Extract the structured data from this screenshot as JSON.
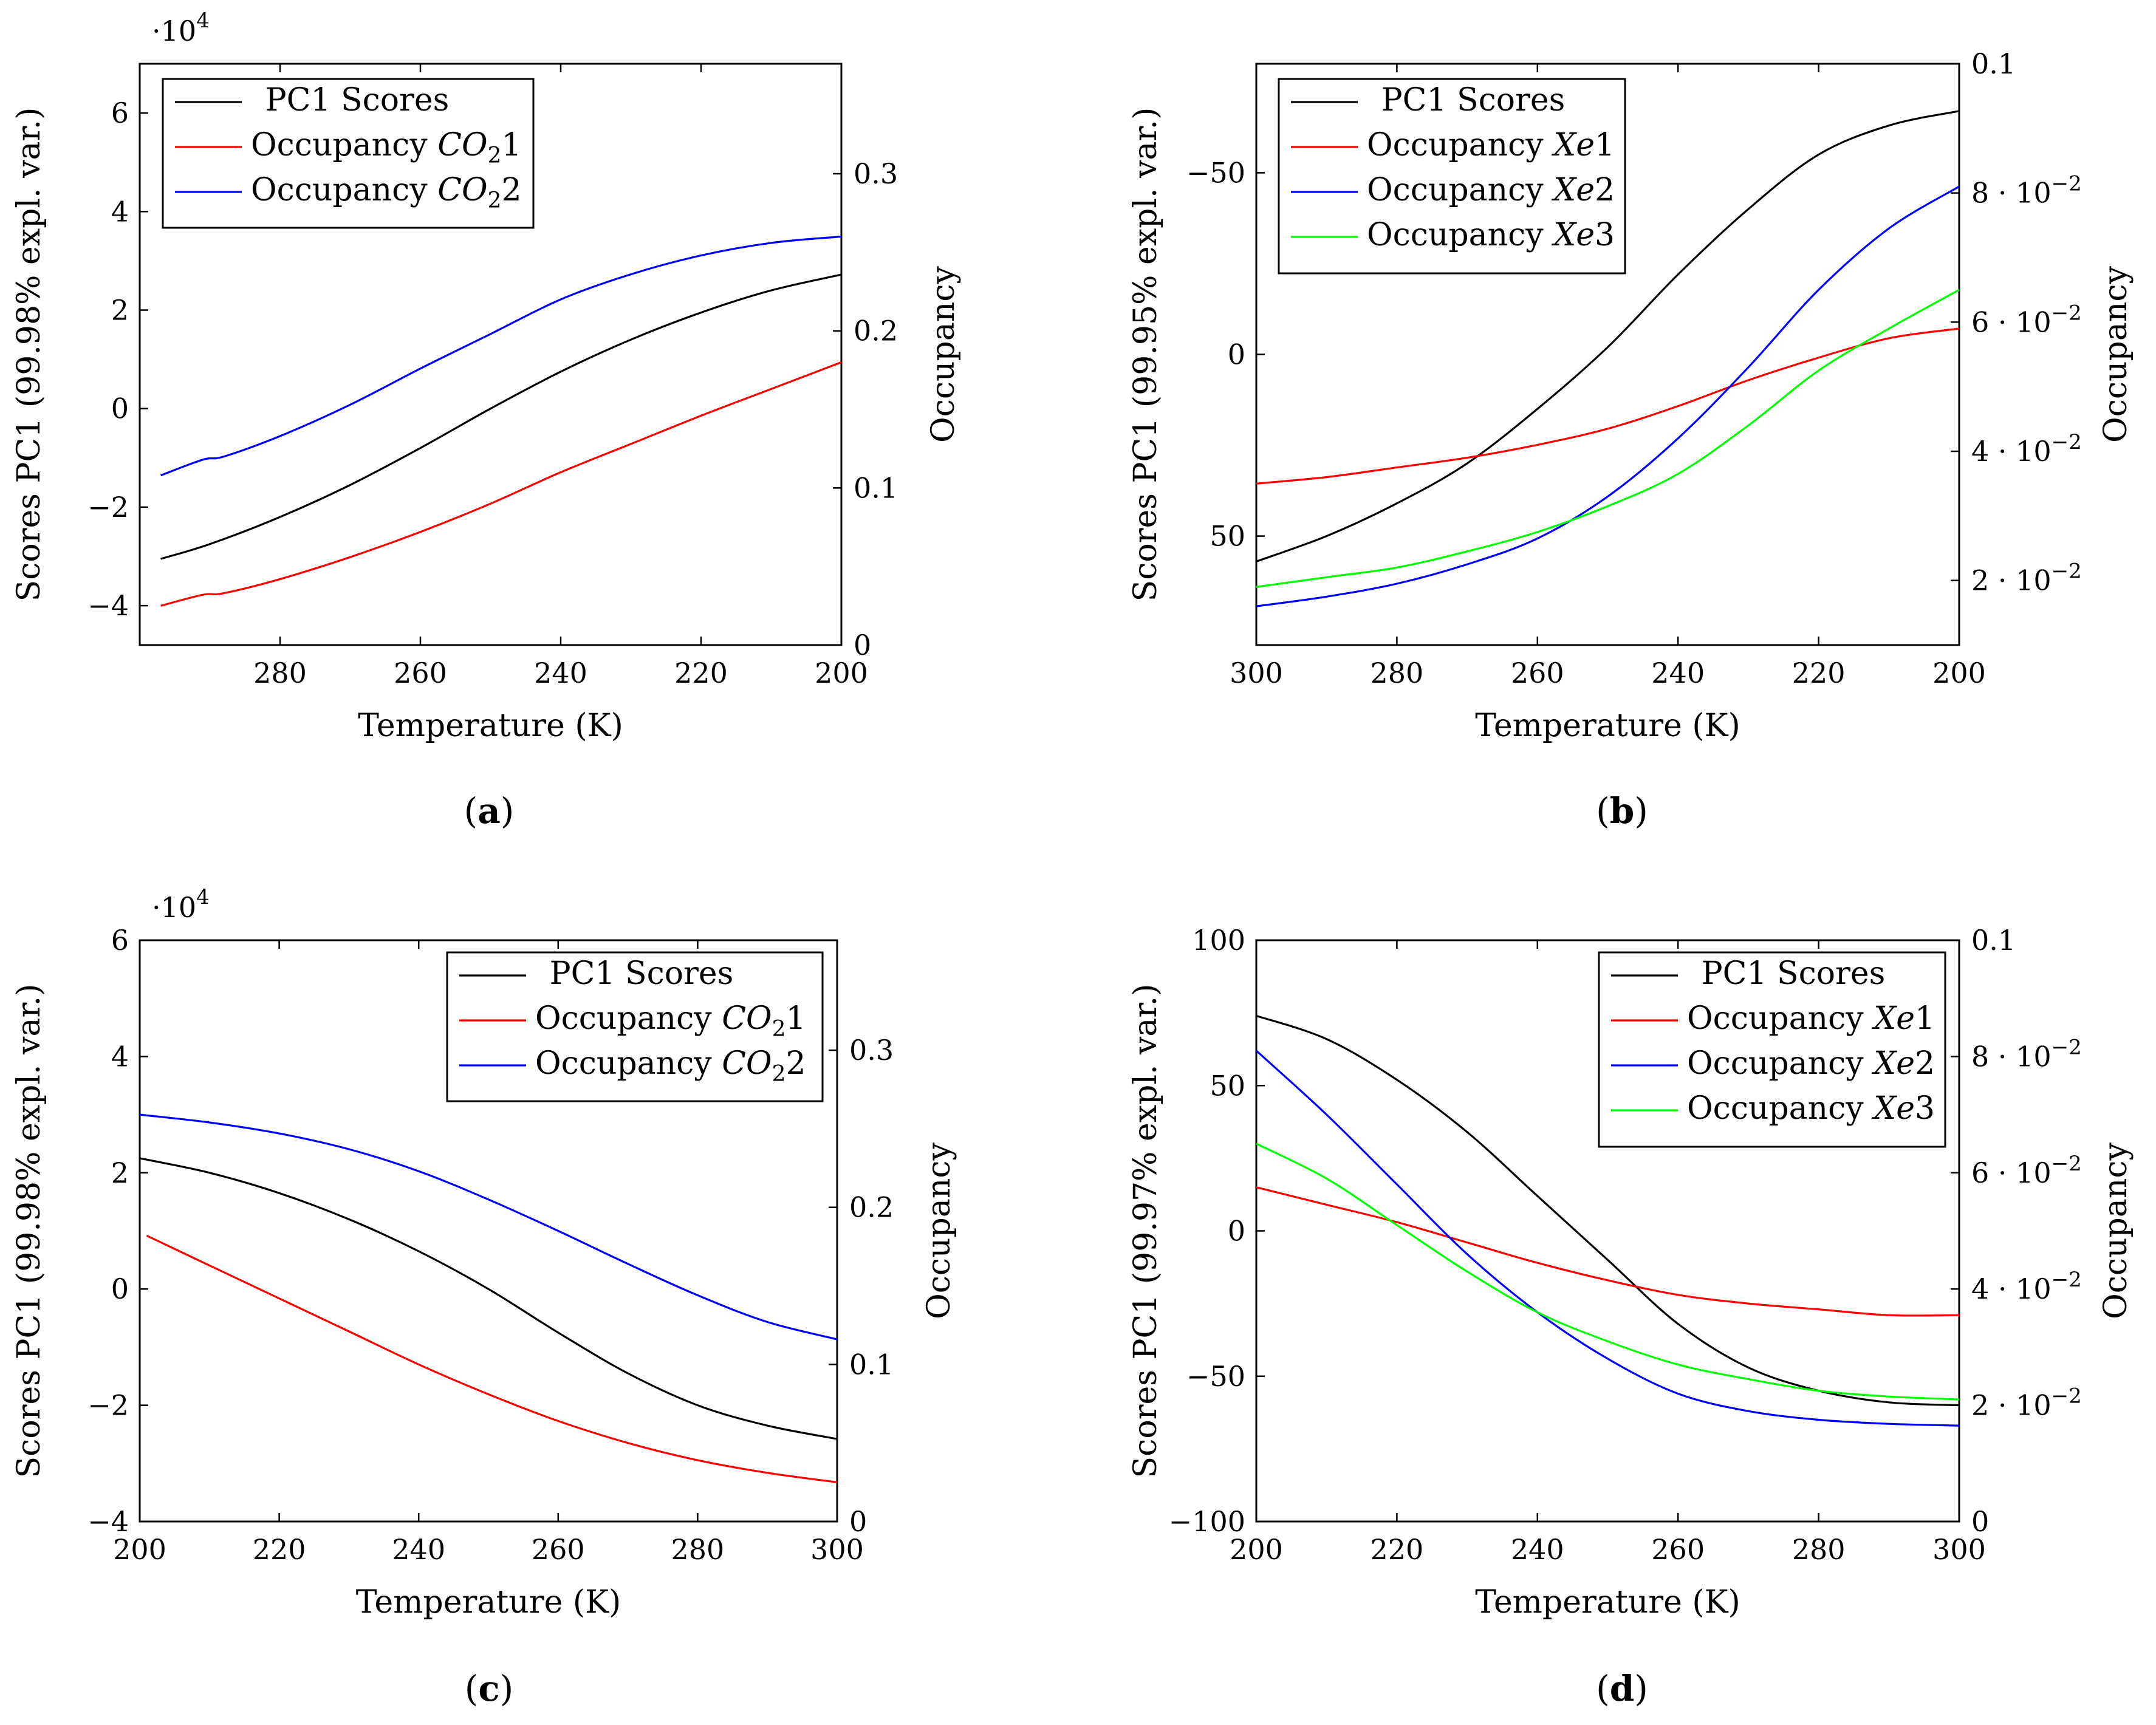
{
  "chart_data": [
    {
      "id": "a",
      "type": "line",
      "caption": "a",
      "xlabel": "Temperature (K)",
      "ylabel": "Scores PC1 (99.98% expl. var.)",
      "y2label": "Occupancy",
      "xlim": [
        300,
        200
      ],
      "ylim": [
        -4.8,
        7.0
      ],
      "y2lim": [
        0,
        0.37
      ],
      "xticks": [
        "280",
        "260",
        "240",
        "220",
        "200"
      ],
      "xtick_values": [
        280,
        260,
        240,
        220,
        200
      ],
      "yticks": [
        "−4",
        "−2",
        "0",
        "2",
        "4",
        "6"
      ],
      "ytick_values": [
        -4,
        -2,
        0,
        2,
        4,
        6
      ],
      "y2ticks": [
        "0",
        "0.1",
        "0.2",
        "0.3"
      ],
      "y2tick_values": [
        0,
        0.1,
        0.2,
        0.3
      ],
      "scale_label": "·10",
      "scale_exp": "4",
      "legend_position": "top-left",
      "series": [
        {
          "name": "PC1 Scores",
          "axis": "left",
          "color": "#000000",
          "x": [
            297,
            290,
            280,
            270,
            260,
            250,
            240,
            230,
            220,
            210,
            200
          ],
          "y": [
            -3.05,
            -2.75,
            -2.2,
            -1.55,
            -0.8,
            0.0,
            0.75,
            1.4,
            1.95,
            2.4,
            2.72
          ]
        },
        {
          "name": "Occupancy CO21",
          "label_main": "Occupancy ",
          "label_ital": "CO",
          "label_sub": "2",
          "label_end": "1",
          "axis": "right",
          "color": "#ff0000",
          "x": [
            297,
            291,
            288,
            280,
            270,
            260,
            250,
            240,
            230,
            220,
            210,
            200
          ],
          "y": [
            0.025,
            0.032,
            0.033,
            0.042,
            0.056,
            0.072,
            0.09,
            0.11,
            0.128,
            0.146,
            0.163,
            0.18
          ]
        },
        {
          "name": "Occupancy CO22",
          "label_main": "Occupancy ",
          "label_ital": "CO",
          "label_sub": "2",
          "label_end": "2",
          "axis": "right",
          "color": "#0000ff",
          "x": [
            297,
            291,
            288,
            280,
            270,
            260,
            250,
            240,
            230,
            220,
            210,
            200
          ],
          "y": [
            0.108,
            0.118,
            0.12,
            0.133,
            0.153,
            0.176,
            0.198,
            0.22,
            0.236,
            0.248,
            0.256,
            0.26
          ]
        }
      ]
    },
    {
      "id": "b",
      "type": "line",
      "caption": "b",
      "xlabel": "Temperature (K)",
      "ylabel": "Scores PC1 (99.95% expl. var.)",
      "y2label": "Occupancy",
      "xlim": [
        300,
        200
      ],
      "ylim": [
        80,
        -80
      ],
      "y2lim": [
        0.01,
        0.1
      ],
      "xticks": [
        "300",
        "280",
        "260",
        "240",
        "220",
        "200"
      ],
      "xtick_values": [
        300,
        280,
        260,
        240,
        220,
        200
      ],
      "yticks": [
        "50",
        "0",
        "−50"
      ],
      "ytick_values": [
        50,
        0,
        -50
      ],
      "y2ticks": [
        "2 · 10",
        "4 · 10",
        "6 · 10",
        "8 · 10",
        "0.1"
      ],
      "y2tick_exps": [
        "−2",
        "−2",
        "−2",
        "−2",
        ""
      ],
      "y2tick_values": [
        0.02,
        0.04,
        0.06,
        0.08,
        0.1
      ],
      "legend_position": "top-left",
      "series": [
        {
          "name": "PC1 Scores",
          "axis": "left",
          "color": "#000000",
          "x": [
            300,
            290,
            280,
            270,
            260,
            250,
            240,
            230,
            220,
            210,
            200
          ],
          "y": [
            57,
            50,
            41,
            30,
            15,
            -2,
            -22,
            -40,
            -55,
            -63,
            -67
          ]
        },
        {
          "name": "Occupancy Xe1",
          "label_main": "Occupancy ",
          "label_ital": "Xe",
          "label_end": "1",
          "axis": "right",
          "color": "#ff0000",
          "x": [
            300,
            290,
            280,
            270,
            260,
            250,
            240,
            230,
            220,
            210,
            200
          ],
          "y": [
            0.035,
            0.036,
            0.0375,
            0.039,
            0.041,
            0.0435,
            0.047,
            0.051,
            0.0545,
            0.0575,
            0.059
          ]
        },
        {
          "name": "Occupancy Xe2",
          "label_main": "Occupancy ",
          "label_ital": "Xe",
          "label_end": "2",
          "axis": "right",
          "color": "#0000ff",
          "x": [
            300,
            290,
            280,
            270,
            260,
            250,
            240,
            230,
            220,
            210,
            200
          ],
          "y": [
            0.016,
            0.0175,
            0.0195,
            0.0225,
            0.0265,
            0.033,
            0.042,
            0.053,
            0.065,
            0.0745,
            0.081
          ]
        },
        {
          "name": "Occupancy Xe3",
          "label_main": "Occupancy ",
          "label_ital": "Xe",
          "label_end": "3",
          "axis": "right",
          "color": "#00ff00",
          "x": [
            300,
            290,
            280,
            270,
            260,
            250,
            240,
            230,
            220,
            210,
            200
          ],
          "y": [
            0.019,
            0.0205,
            0.022,
            0.0245,
            0.0275,
            0.0315,
            0.0365,
            0.044,
            0.0525,
            0.059,
            0.065
          ]
        }
      ]
    },
    {
      "id": "c",
      "type": "line",
      "caption": "c",
      "xlabel": "Temperature (K)",
      "ylabel": "Scores PC1 (99.98% expl. var.)",
      "y2label": "Occupancy",
      "xlim": [
        200,
        300
      ],
      "ylim": [
        -4.0,
        6.0
      ],
      "y2lim": [
        0,
        0.37
      ],
      "xticks": [
        "200",
        "220",
        "240",
        "260",
        "280",
        "300"
      ],
      "xtick_values": [
        200,
        220,
        240,
        260,
        280,
        300
      ],
      "yticks": [
        "−4",
        "−2",
        "0",
        "2",
        "4",
        "6"
      ],
      "ytick_values": [
        -4,
        -2,
        0,
        2,
        4,
        6
      ],
      "y2ticks": [
        "0",
        "0.1",
        "0.2",
        "0.3"
      ],
      "y2tick_values": [
        0,
        0.1,
        0.2,
        0.3
      ],
      "scale_label": "·10",
      "scale_exp": "4",
      "legend_position": "top-right",
      "series": [
        {
          "name": "PC1 Scores",
          "axis": "left",
          "color": "#000000",
          "x": [
            200,
            210,
            220,
            230,
            240,
            250,
            260,
            270,
            280,
            290,
            300
          ],
          "y": [
            2.25,
            2.0,
            1.65,
            1.2,
            0.65,
            0.0,
            -0.75,
            -1.45,
            -2.0,
            -2.35,
            -2.58
          ]
        },
        {
          "name": "Occupancy CO21",
          "label_main": "Occupancy ",
          "label_ital": "CO",
          "label_sub": "2",
          "label_end": "1",
          "axis": "right",
          "color": "#ff0000",
          "x": [
            201,
            210,
            220,
            230,
            240,
            250,
            260,
            270,
            280,
            290,
            300
          ],
          "y": [
            0.182,
            0.163,
            0.142,
            0.121,
            0.1,
            0.081,
            0.064,
            0.05,
            0.039,
            0.031,
            0.025
          ]
        },
        {
          "name": "Occupancy CO22",
          "label_main": "Occupancy ",
          "label_ital": "CO",
          "label_sub": "2",
          "label_end": "2",
          "axis": "right",
          "color": "#0000ff",
          "x": [
            200,
            210,
            220,
            230,
            240,
            250,
            260,
            270,
            280,
            290,
            300
          ],
          "y": [
            0.259,
            0.254,
            0.247,
            0.237,
            0.223,
            0.205,
            0.185,
            0.164,
            0.144,
            0.127,
            0.116
          ]
        }
      ]
    },
    {
      "id": "d",
      "type": "line",
      "caption": "d",
      "xlabel": "Temperature (K)",
      "ylabel": "Scores PC1 (99.97% expl. var.)",
      "y2label": "Occupancy",
      "xlim": [
        200,
        300
      ],
      "ylim": [
        -100,
        100
      ],
      "y2lim": [
        0,
        0.1
      ],
      "xticks": [
        "200",
        "220",
        "240",
        "260",
        "280",
        "300"
      ],
      "xtick_values": [
        200,
        220,
        240,
        260,
        280,
        300
      ],
      "yticks": [
        "−100",
        "−50",
        "0",
        "50",
        "100"
      ],
      "ytick_values": [
        -100,
        -50,
        0,
        50,
        100
      ],
      "y2ticks": [
        "0",
        "2 · 10",
        "4 · 10",
        "6 · 10",
        "8 · 10",
        "0.1"
      ],
      "y2tick_exps": [
        "",
        "−2",
        "−2",
        "−2",
        "−2",
        ""
      ],
      "y2tick_values": [
        0,
        0.02,
        0.04,
        0.06,
        0.08,
        0.1
      ],
      "legend_position": "top-right",
      "series": [
        {
          "name": "PC1 Scores",
          "axis": "left",
          "color": "#000000",
          "x": [
            200,
            210,
            220,
            230,
            240,
            250,
            260,
            270,
            280,
            290,
            300
          ],
          "y": [
            74,
            66,
            52,
            34,
            12,
            -10,
            -32,
            -47,
            -55,
            -59,
            -60
          ]
        },
        {
          "name": "Occupancy Xe1",
          "label_main": "Occupancy ",
          "label_ital": "Xe",
          "label_end": "1",
          "axis": "right",
          "color": "#ff0000",
          "x": [
            200,
            210,
            220,
            230,
            240,
            250,
            260,
            270,
            280,
            290,
            300
          ],
          "y": [
            0.0575,
            0.0545,
            0.0515,
            0.048,
            0.0445,
            0.0415,
            0.039,
            0.0375,
            0.0365,
            0.0355,
            0.0355
          ]
        },
        {
          "name": "Occupancy Xe2",
          "label_main": "Occupancy ",
          "label_ital": "Xe",
          "label_end": "2",
          "axis": "right",
          "color": "#0000ff",
          "x": [
            200,
            210,
            220,
            230,
            240,
            250,
            260,
            270,
            280,
            290,
            300
          ],
          "y": [
            0.081,
            0.07,
            0.058,
            0.046,
            0.036,
            0.028,
            0.022,
            0.019,
            0.0175,
            0.0168,
            0.0165
          ]
        },
        {
          "name": "Occupancy Xe3",
          "label_main": "Occupancy ",
          "label_ital": "Xe",
          "label_end": "3",
          "axis": "right",
          "color": "#00ff00",
          "x": [
            200,
            210,
            220,
            230,
            240,
            250,
            260,
            270,
            280,
            290,
            300
          ],
          "y": [
            0.065,
            0.059,
            0.051,
            0.043,
            0.036,
            0.031,
            0.027,
            0.0245,
            0.0225,
            0.0215,
            0.021
          ]
        }
      ]
    }
  ]
}
